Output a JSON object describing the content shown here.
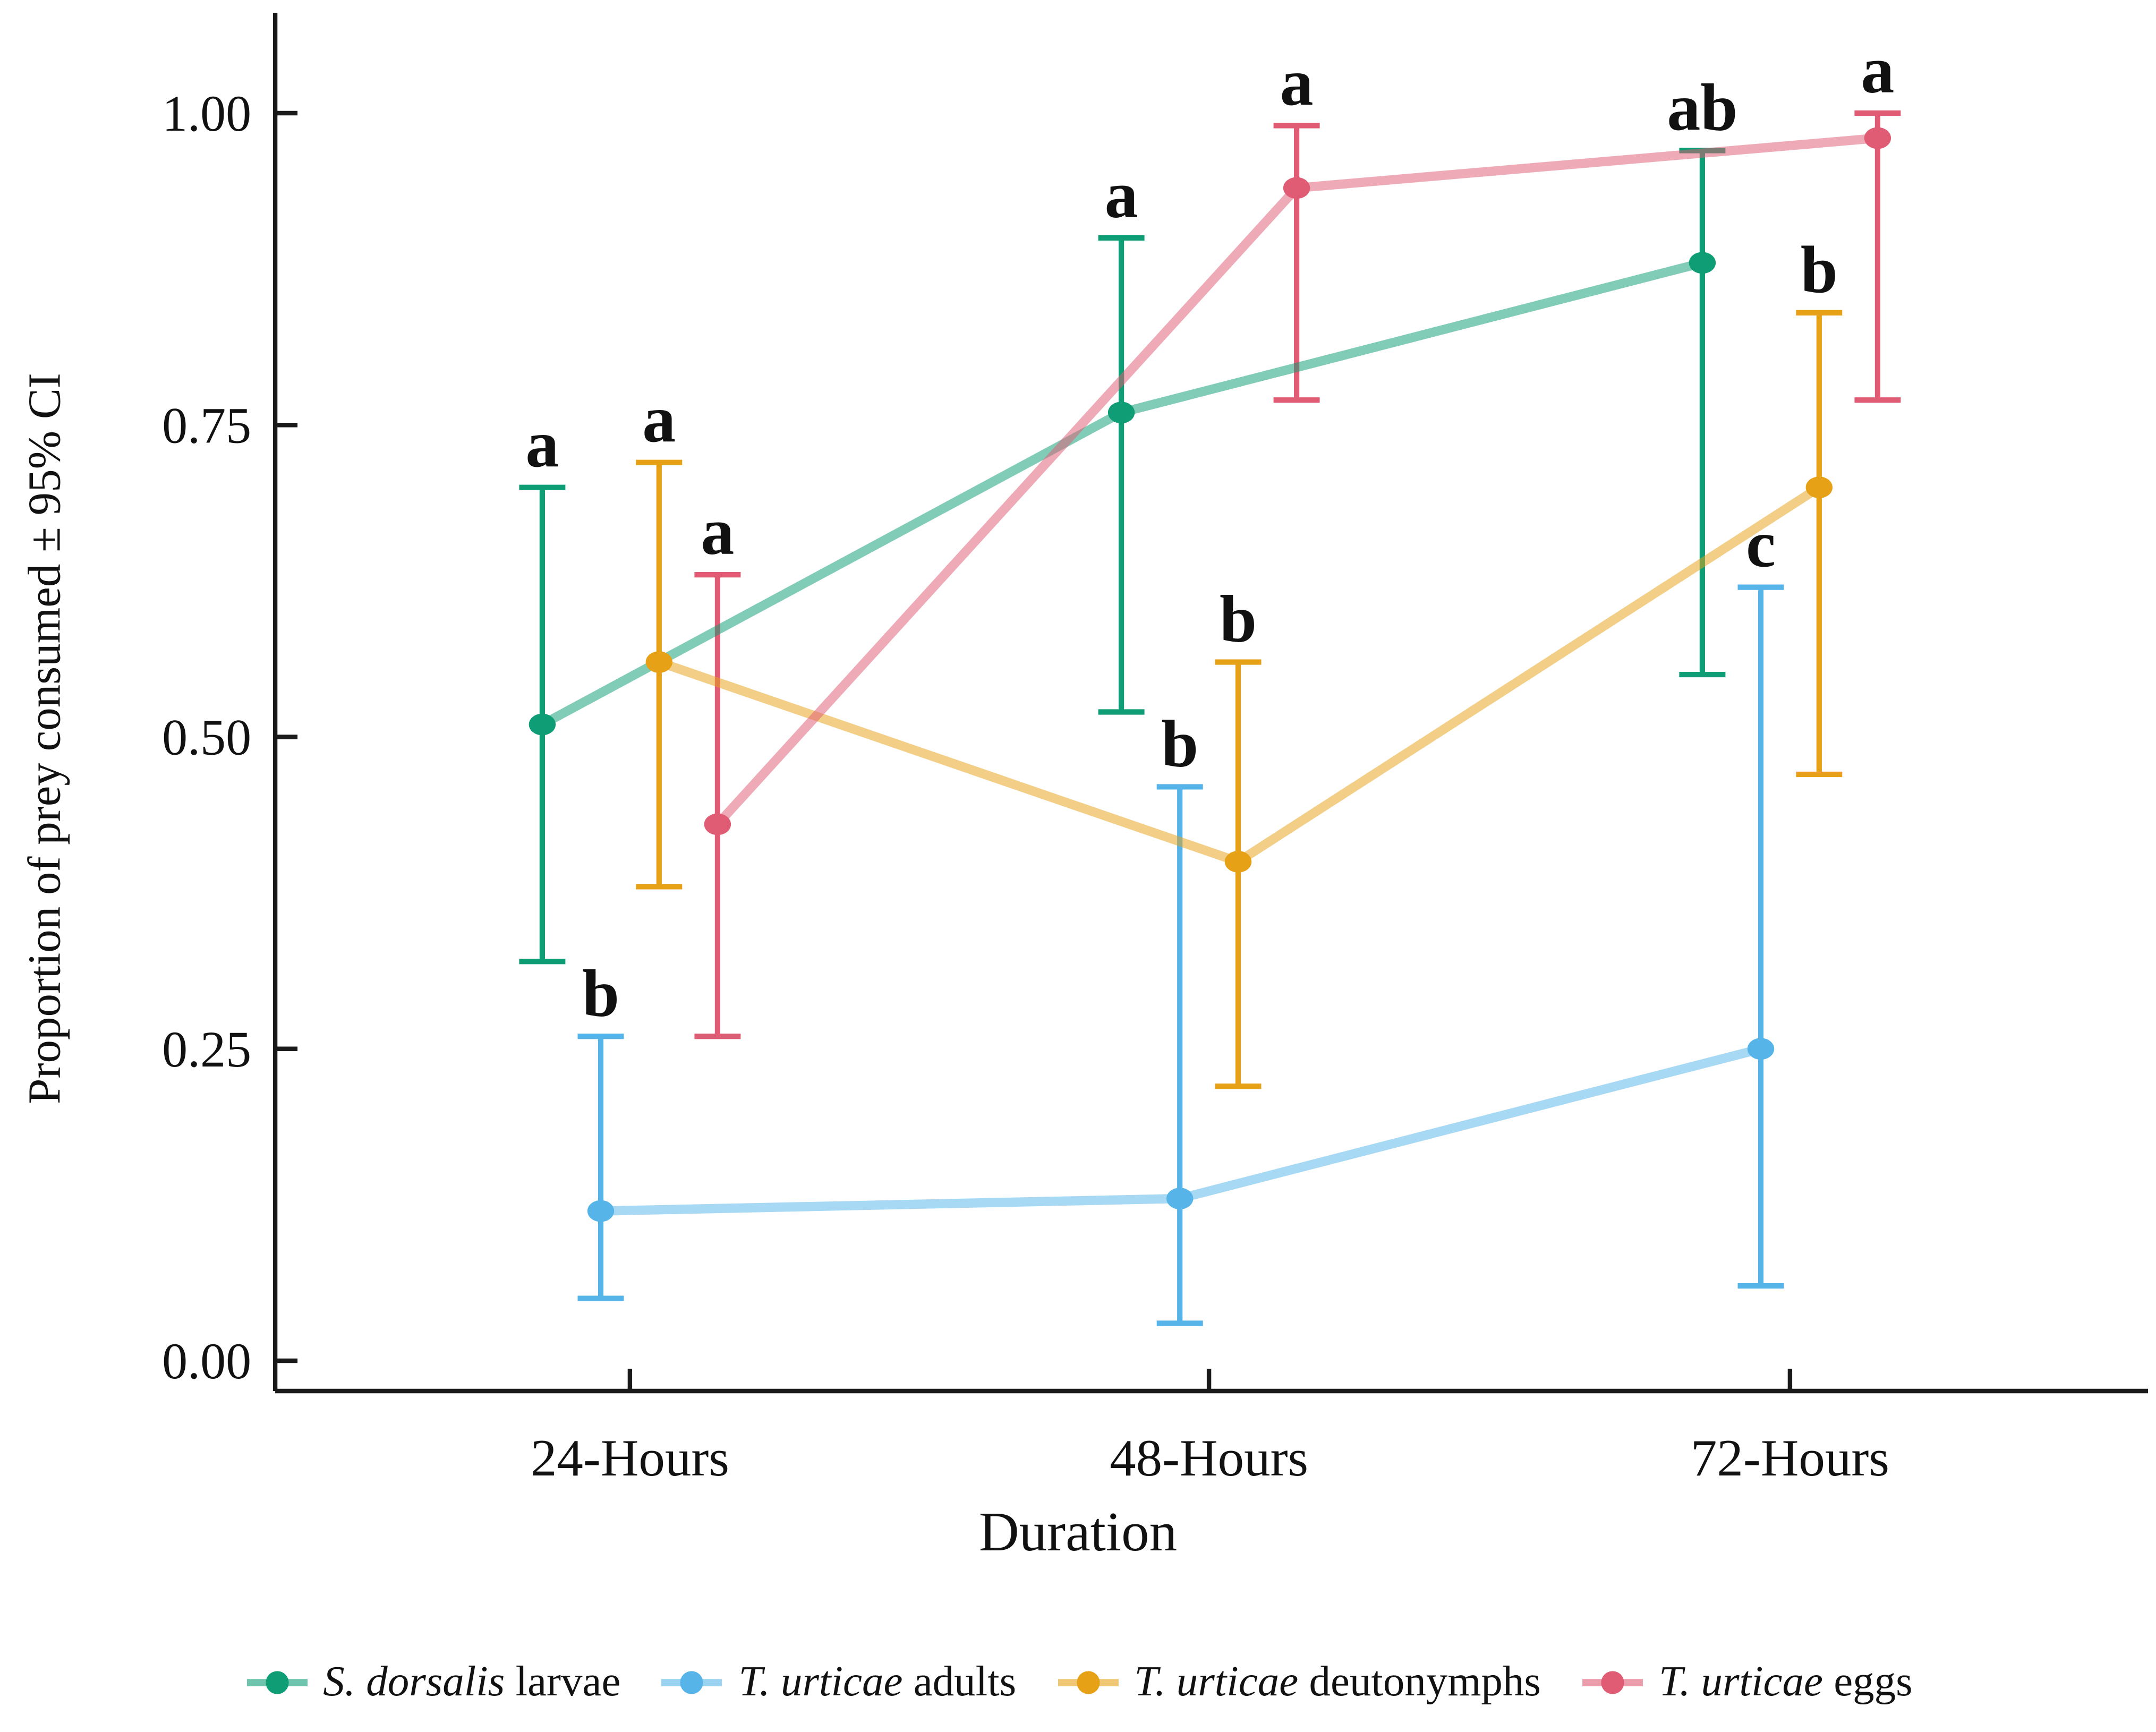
{
  "figure": {
    "xlabel": "Duration",
    "ylabel": "Proportion of prey consumed ± 95% CI"
  },
  "chart_data": {
    "type": "line",
    "title": "",
    "xlabel": "Duration",
    "ylabel": "Proportion of prey consumed ± 95% CI",
    "categories": [
      "24-Hours",
      "48-Hours",
      "72-Hours"
    ],
    "yticks": [
      0,
      0.25,
      0.5,
      0.75,
      1.0
    ],
    "ytick_labels": [
      "0.00",
      "0.25",
      "0.50",
      "0.75",
      "1.00"
    ],
    "ylim": [
      0,
      1.03
    ],
    "grid": false,
    "legend_position": "bottom",
    "error_bars": "95% confidence interval",
    "axis_color": "#1A1A1A",
    "letter_color": "#111111",
    "series": [
      {
        "name": "S. dorsalis larvae",
        "name_italic": "S. dorsalis",
        "name_roman": "larvae",
        "color": "#0E9D74",
        "values": [
          0.51,
          0.76,
          0.88
        ],
        "ci_lower": [
          0.32,
          0.52,
          0.55
        ],
        "ci_upper": [
          0.7,
          0.9,
          0.97
        ],
        "sig_letters": [
          "a",
          "a",
          "ab"
        ]
      },
      {
        "name": "T. urticae adults",
        "name_italic": "T. urticae",
        "name_roman": "adults",
        "color": "#56B4E9",
        "values": [
          0.12,
          0.13,
          0.25
        ],
        "ci_lower": [
          0.05,
          0.03,
          0.06
        ],
        "ci_upper": [
          0.26,
          0.46,
          0.62
        ],
        "sig_letters": [
          "b",
          "b",
          "c"
        ]
      },
      {
        "name": "T. urticae deutonymphs",
        "name_italic": "T. urticae",
        "name_roman": "deutonymphs",
        "color": "#E6A117",
        "values": [
          0.56,
          0.4,
          0.7
        ],
        "ci_lower": [
          0.38,
          0.22,
          0.47
        ],
        "ci_upper": [
          0.72,
          0.56,
          0.84
        ],
        "sig_letters": [
          "a",
          "b",
          "b"
        ]
      },
      {
        "name": "T. urticae eggs",
        "name_italic": "T. urticae",
        "name_roman": "eggs",
        "color": "#E05C74",
        "values": [
          0.43,
          0.94,
          0.98
        ],
        "ci_lower": [
          0.26,
          0.77,
          0.77
        ],
        "ci_upper": [
          0.63,
          0.99,
          1.0
        ],
        "sig_letters": [
          "a",
          "a",
          "a"
        ]
      }
    ]
  }
}
